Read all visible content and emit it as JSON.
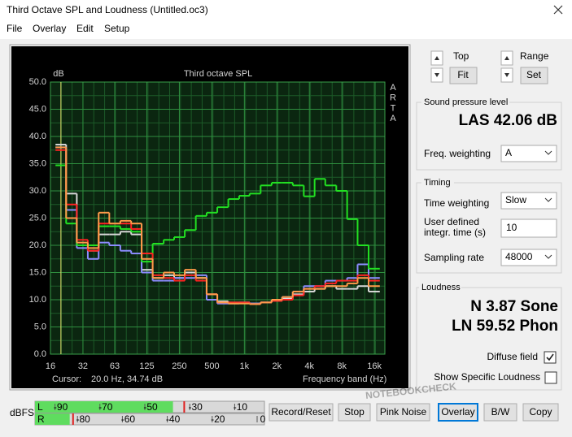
{
  "window": {
    "title": "Third Octave SPL and Loudness (Untitled.oc3)"
  },
  "menu": [
    "File",
    "Overlay",
    "Edit",
    "Setup"
  ],
  "chart_data": {
    "type": "step",
    "title": "Third octave SPL",
    "y_label": "dB",
    "x_label": "Frequency band (Hz)",
    "side_label": [
      "A",
      "R",
      "T",
      "A"
    ],
    "cursor": {
      "label": "Cursor:",
      "text": "20.0 Hz, 34.74 dB"
    },
    "log_x": true,
    "grid": true,
    "x": [
      20,
      25,
      31.5,
      40,
      50,
      63,
      80,
      100,
      125,
      160,
      200,
      250,
      315,
      400,
      500,
      630,
      800,
      1000,
      1250,
      1600,
      2000,
      2500,
      3150,
      4000,
      5000,
      6300,
      8000,
      10000,
      12500,
      16000
    ],
    "series": [
      {
        "color": "#d8d8d8",
        "values": [
          38.5,
          29.5,
          20,
          19,
          22,
          22,
          22.5,
          22,
          15.5,
          14,
          14.5,
          14,
          15,
          14,
          11,
          9.7,
          9.5,
          9.5,
          9.3,
          9.5,
          9.8,
          10.2,
          11,
          11.5,
          12,
          12.5,
          12,
          12,
          12.5,
          11.5
        ]
      },
      {
        "color": "#8c8cff",
        "values": [
          38,
          26.5,
          19.5,
          17.5,
          20.5,
          20,
          19,
          18.5,
          15,
          13.5,
          13.5,
          14,
          14,
          14.5,
          10,
          9.3,
          9.3,
          9.5,
          9.3,
          9.5,
          10,
          10.5,
          11.5,
          12.5,
          12.5,
          13.5,
          13.5,
          14,
          16.5,
          14
        ]
      },
      {
        "color": "#22e022",
        "values": [
          34.7,
          24,
          20,
          20,
          23.5,
          23.5,
          23,
          22.5,
          17,
          20.3,
          21,
          21.5,
          22.8,
          25.4,
          26,
          27,
          28.5,
          29.1,
          29.5,
          31,
          31.5,
          31.5,
          31,
          29,
          32.2,
          31,
          30,
          24.8,
          20,
          15.7
        ]
      },
      {
        "color": "#ff2222",
        "values": [
          37.5,
          27.5,
          21,
          19,
          24,
          24,
          24,
          23,
          18.5,
          14.5,
          14,
          13.5,
          14.5,
          13.5,
          11,
          9.5,
          9.5,
          9.5,
          9.2,
          9.5,
          9.8,
          10,
          10.8,
          12,
          12.5,
          13,
          13.5,
          13.5,
          14.5,
          13.5
        ]
      },
      {
        "color": "#ff9a4a",
        "values": [
          38,
          25,
          20.5,
          19.5,
          26,
          24,
          24.5,
          24,
          17.5,
          14,
          15,
          14.5,
          15.5,
          14,
          11,
          9.5,
          9.3,
          9.3,
          9.2,
          9.5,
          10,
          10.5,
          11.5,
          12,
          12,
          12.5,
          12.5,
          13,
          14,
          12.5
        ]
      }
    ],
    "xlim": [
      16,
      20000
    ],
    "xticks": [
      16,
      32,
      63,
      125,
      250,
      500,
      {
        "value": 1000,
        "label": "1k"
      },
      {
        "value": 2000,
        "label": "2k"
      },
      {
        "value": 4000,
        "label": "4k"
      },
      {
        "value": 8000,
        "label": "8k"
      },
      {
        "value": 16000,
        "label": "16k"
      }
    ],
    "ylim": [
      0,
      50
    ],
    "yticks": [
      {
        "value": 0,
        "label": "0.0"
      },
      {
        "value": 5,
        "label": "5.0"
      },
      {
        "value": 10,
        "label": "10.0"
      },
      {
        "value": 15,
        "label": "15.0"
      },
      {
        "value": 20,
        "label": "20.0"
      },
      {
        "value": 25,
        "label": "25.0"
      },
      {
        "value": 30,
        "label": "30.0"
      },
      {
        "value": 35,
        "label": "35.0"
      },
      {
        "value": 40,
        "label": "40.0"
      },
      {
        "value": 45,
        "label": "45.0"
      },
      {
        "value": 50,
        "label": "50.0"
      }
    ]
  },
  "controls": {
    "top": "Top",
    "fit": "Fit",
    "range": "Range",
    "set": "Set"
  },
  "spl": {
    "group": "Sound pressure level",
    "value": "LAS 42.06 dB",
    "freq_weighting_label": "Freq. weighting",
    "freq_weighting": "A"
  },
  "timing": {
    "group": "Timing",
    "time_weighting_label": "Time weighting",
    "time_weighting": "Slow",
    "integr_label": [
      "User defined",
      "integr. time (s)"
    ],
    "integr_time": "10",
    "sampling_rate_label": "Sampling rate",
    "sampling_rate": "48000"
  },
  "loudness": {
    "group": "Loudness",
    "n": "N 3.87 Sone",
    "ln": "LN 59.52 Phon",
    "diffuse": "Diffuse field",
    "diffuse_checked": true,
    "specific": "Show Specific Loudness",
    "specific_checked": false
  },
  "meters": {
    "label": "dBFS",
    "range": [
      -100,
      0
    ],
    "channels": [
      {
        "name": "L",
        "ticks": [
          -90,
          -70,
          -50,
          -30,
          -10
        ],
        "level": -40,
        "peak": -35
      },
      {
        "name": "R",
        "ticks": [
          -80,
          -60,
          -40,
          -20,
          0
        ],
        "level": -86,
        "peak": -84.5
      }
    ]
  },
  "buttons": [
    "Record/Reset",
    "Stop",
    "Pink Noise",
    "Overlay",
    "B/W",
    "Copy"
  ],
  "watermark": "NOTEBOOKCHECK"
}
